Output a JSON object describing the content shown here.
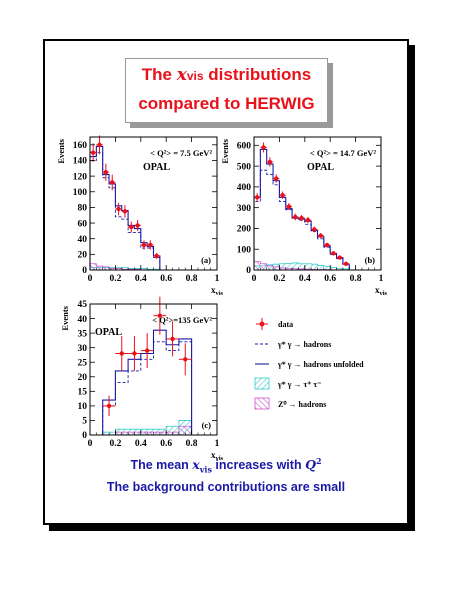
{
  "title": {
    "line1_prefix": "The ",
    "line1_var": "x",
    "line1_sub": "vis",
    "line1_suffix": " distributions",
    "line2": "compared to HERWIG"
  },
  "footer": {
    "line1_prefix": "The mean ",
    "line1_var": "x",
    "line1_sub": "vis",
    "line1_mid": " increases with ",
    "line1_q": "Q",
    "line1_sup": "2",
    "line2": "The background contributions are small"
  },
  "colors": {
    "title": "#e8121b",
    "footer": "#1a1aa6",
    "data": "#e8121b",
    "hist": "#1a1aa6",
    "tautau": "#33cccc",
    "z0": "#cc55cc"
  },
  "legend": [
    {
      "key": "data",
      "label": "data"
    },
    {
      "key": "dashed",
      "label": "γ* γ → hadrons"
    },
    {
      "key": "solid",
      "label": "γ* γ → hadrons unfolded"
    },
    {
      "key": "tau",
      "label": "γ* γ → τ⁺ τ⁻"
    },
    {
      "key": "z0",
      "label": "Z⁰ → hadrons"
    }
  ],
  "chart_data": [
    {
      "type": "histogram",
      "panel": "(a)",
      "label": "OPAL",
      "q2_label": "< Q²> = 7.5 GeV²",
      "xlabel": "x_vis",
      "ylabel": "Events",
      "xlim": [
        0,
        1
      ],
      "ylim": [
        0,
        170
      ],
      "xticks": [
        "0",
        "0.2",
        "0.4",
        "0.6",
        "0.8",
        "1"
      ],
      "yticks": [
        "0",
        "20",
        "40",
        "60",
        "80",
        "100",
        "120",
        "140",
        "160"
      ],
      "bins": [
        0,
        0.05,
        0.1,
        0.15,
        0.2,
        0.25,
        0.3,
        0.35,
        0.4,
        0.45,
        0.5,
        0.55
      ],
      "data_x": [
        0.025,
        0.075,
        0.125,
        0.175,
        0.225,
        0.275,
        0.325,
        0.375,
        0.425,
        0.475,
        0.525
      ],
      "data_y": [
        150,
        160,
        125,
        112,
        78,
        75,
        55,
        57,
        32,
        32,
        18
      ],
      "data_err": [
        12,
        12,
        11,
        10,
        8,
        8,
        7,
        7,
        6,
        6,
        4
      ],
      "unfolded": [
        145,
        158,
        122,
        110,
        82,
        76,
        57,
        53,
        35,
        30,
        18
      ],
      "herwig": [
        140,
        150,
        118,
        105,
        68,
        65,
        48,
        48,
        28,
        28,
        16
      ],
      "tautau": [
        3,
        3,
        3,
        3,
        3,
        3,
        2,
        2,
        2,
        1,
        1
      ],
      "z0": [
        8,
        5,
        4,
        2,
        2,
        1,
        1,
        1,
        0,
        0,
        0
      ]
    },
    {
      "type": "histogram",
      "panel": "(b)",
      "label": "OPAL",
      "q2_label": "< Q²> = 14.7 GeV²",
      "xlabel": "x_vis",
      "ylabel": "Events",
      "xlim": [
        0,
        1
      ],
      "ylim": [
        0,
        640
      ],
      "xticks": [
        "0",
        "0.2",
        "0.4",
        "0.6",
        "0.8",
        "1"
      ],
      "yticks": [
        "0",
        "100",
        "200",
        "300",
        "400",
        "500",
        "600"
      ],
      "bins": [
        0,
        0.05,
        0.1,
        0.15,
        0.2,
        0.25,
        0.3,
        0.35,
        0.4,
        0.45,
        0.5,
        0.55,
        0.6,
        0.65,
        0.7,
        0.75
      ],
      "data_x": [
        0.025,
        0.075,
        0.125,
        0.175,
        0.225,
        0.275,
        0.325,
        0.375,
        0.425,
        0.475,
        0.525,
        0.575,
        0.625,
        0.675,
        0.725
      ],
      "data_y": [
        350,
        590,
        520,
        440,
        360,
        305,
        255,
        250,
        240,
        195,
        165,
        120,
        80,
        60,
        30
      ],
      "data_err": [
        20,
        24,
        22,
        20,
        18,
        17,
        16,
        15,
        15,
        14,
        13,
        11,
        9,
        8,
        6
      ],
      "unfolded": [
        350,
        580,
        510,
        430,
        350,
        295,
        250,
        245,
        235,
        190,
        160,
        115,
        80,
        60,
        28
      ],
      "herwig": [
        330,
        480,
        460,
        410,
        330,
        290,
        250,
        240,
        220,
        185,
        150,
        110,
        75,
        55,
        25
      ],
      "tautau": [
        20,
        20,
        25,
        28,
        30,
        32,
        34,
        30,
        30,
        28,
        22,
        18,
        12,
        8,
        5
      ],
      "z0": [
        40,
        30,
        20,
        15,
        10,
        8,
        6,
        5,
        4,
        3,
        2,
        2,
        1,
        1,
        0
      ]
    },
    {
      "type": "histogram",
      "panel": "(c)",
      "label": "OPAL",
      "q2_label": "< Q²>=135 GeV²",
      "xlabel": "x_vis",
      "ylabel": "Events",
      "xlim": [
        0,
        1
      ],
      "ylim": [
        0,
        45
      ],
      "xticks": [
        "0",
        "0.2",
        "0.4",
        "0.6",
        "0.8",
        "1"
      ],
      "yticks": [
        "0",
        "5",
        "10",
        "15",
        "20",
        "25",
        "30",
        "35",
        "40",
        "45"
      ],
      "bins": [
        0,
        0.1,
        0.2,
        0.3,
        0.4,
        0.5,
        0.6,
        0.7,
        0.8
      ],
      "data_x": [
        0.15,
        0.25,
        0.35,
        0.45,
        0.55,
        0.65,
        0.75
      ],
      "data_y": [
        10,
        28,
        28,
        29,
        41,
        33,
        26
      ],
      "data_err": [
        3.5,
        6,
        6,
        6,
        6.5,
        6,
        5.5
      ],
      "unfolded": [
        0,
        12,
        22,
        26,
        28,
        36,
        31,
        33
      ],
      "herwig": [
        0,
        10,
        18,
        22,
        26,
        32,
        29,
        32
      ],
      "tautau": [
        0,
        1,
        2,
        2,
        2,
        2,
        3,
        5
      ],
      "z0": [
        0,
        0,
        1,
        1,
        1,
        1,
        1,
        3
      ]
    }
  ]
}
